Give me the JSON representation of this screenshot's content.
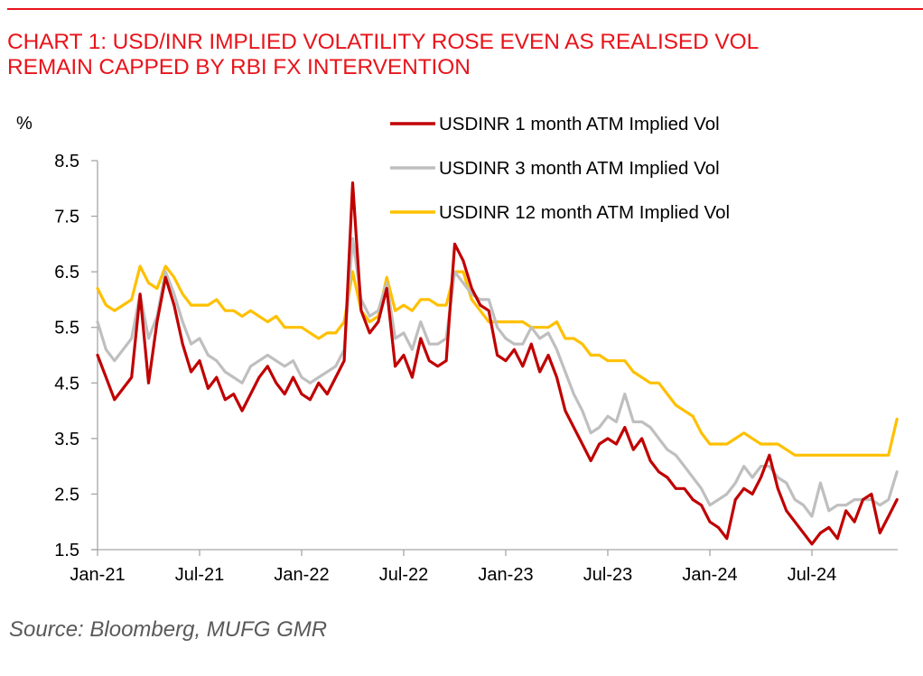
{
  "header": {
    "title_line1": "CHART 1: USD/INR IMPLIED VOLATILITY ROSE EVEN AS REALISED VOL",
    "title_line2": "REMAIN CAPPED BY RBI FX INTERVENTION"
  },
  "footer": {
    "source": "Source: Bloomberg, MUFG GMR"
  },
  "chart_data": {
    "type": "line",
    "title": "CHART 1: USD/INR IMPLIED VOLATILITY ROSE EVEN AS REALISED VOL REMAIN CAPPED BY RBI FX INTERVENTION",
    "ylabel": "%",
    "xlabel": "",
    "ylim": [
      1.5,
      8.5
    ],
    "yticks": [
      "8.5",
      "7.5",
      "6.5",
      "5.5",
      "4.5",
      "3.5",
      "2.5",
      "1.5"
    ],
    "ytick_values": [
      8.5,
      7.5,
      6.5,
      5.5,
      4.5,
      3.5,
      2.5,
      1.5
    ],
    "xlim_months_since_jan21": [
      0,
      47
    ],
    "xticks": [
      "Jan-21",
      "Jul-21",
      "Jan-22",
      "Jul-22",
      "Jan-23",
      "Jul-23",
      "Jan-24",
      "Jul-24"
    ],
    "xtick_months": [
      0,
      6,
      12,
      18,
      24,
      30,
      36,
      42
    ],
    "grid": false,
    "legend_position": "top-right",
    "x_unit": "months since Jan-21",
    "x": [
      0,
      0.5,
      1,
      1.5,
      2,
      2.5,
      3,
      3.5,
      4,
      4.5,
      5,
      5.5,
      6,
      6.5,
      7,
      7.5,
      8,
      8.5,
      9,
      9.5,
      10,
      10.5,
      11,
      11.5,
      12,
      12.5,
      13,
      13.5,
      14,
      14.5,
      15,
      15.5,
      16,
      16.5,
      17,
      17.5,
      18,
      18.5,
      19,
      19.5,
      20,
      20.5,
      21,
      21.5,
      22,
      22.5,
      23,
      23.5,
      24,
      24.5,
      25,
      25.5,
      26,
      26.5,
      27,
      27.5,
      28,
      28.5,
      29,
      29.5,
      30,
      30.5,
      31,
      31.5,
      32,
      32.5,
      33,
      33.5,
      34,
      34.5,
      35,
      35.5,
      36,
      36.5,
      37,
      37.5,
      38,
      38.5,
      39,
      39.5,
      40,
      40.5,
      41,
      41.5,
      42,
      42.5,
      43,
      43.5,
      44,
      44.5,
      45,
      45.5,
      46,
      46.5,
      47
    ],
    "series": [
      {
        "name": "USDINR 1 month ATM Implied Vol",
        "color": "#c00000",
        "values": [
          5.0,
          4.6,
          4.2,
          4.4,
          4.6,
          6.1,
          4.5,
          5.6,
          6.4,
          5.9,
          5.2,
          4.7,
          4.9,
          4.4,
          4.6,
          4.2,
          4.3,
          4.0,
          4.3,
          4.6,
          4.8,
          4.5,
          4.3,
          4.6,
          4.3,
          4.2,
          4.5,
          4.3,
          4.6,
          4.9,
          8.1,
          5.8,
          5.4,
          5.6,
          6.2,
          4.8,
          5.0,
          4.6,
          5.3,
          4.9,
          4.8,
          4.9,
          7.0,
          6.7,
          6.2,
          5.9,
          5.8,
          5.0,
          4.9,
          5.1,
          4.8,
          5.2,
          4.7,
          5.0,
          4.6,
          4.0,
          3.7,
          3.4,
          3.1,
          3.4,
          3.5,
          3.4,
          3.7,
          3.3,
          3.5,
          3.1,
          2.9,
          2.8,
          2.6,
          2.6,
          2.4,
          2.3,
          2.0,
          1.9,
          1.7,
          2.4,
          2.6,
          2.5,
          2.8,
          3.2,
          2.6,
          2.2,
          2.0,
          1.8,
          1.6,
          1.8,
          1.9,
          1.7,
          2.2,
          2.0,
          2.4,
          2.5,
          1.8,
          2.1,
          2.4
        ],
        "marks_named": "series-1m-line"
      },
      {
        "name": "USDINR 3 month ATM Implied Vol",
        "color": "#bfbfbf",
        "values": [
          5.6,
          5.1,
          4.9,
          5.1,
          5.3,
          6.1,
          5.3,
          5.7,
          6.5,
          6.1,
          5.6,
          5.2,
          5.3,
          5.0,
          4.9,
          4.7,
          4.6,
          4.5,
          4.8,
          4.9,
          5.0,
          4.9,
          4.8,
          4.9,
          4.6,
          4.5,
          4.6,
          4.7,
          4.8,
          5.1,
          7.1,
          6.0,
          5.7,
          5.8,
          6.3,
          5.3,
          5.4,
          5.1,
          5.6,
          5.2,
          5.2,
          5.3,
          6.5,
          6.3,
          6.1,
          6.0,
          6.0,
          5.5,
          5.3,
          5.2,
          5.2,
          5.5,
          5.3,
          5.4,
          5.1,
          4.7,
          4.3,
          4.0,
          3.6,
          3.7,
          3.9,
          3.8,
          4.3,
          3.8,
          3.8,
          3.7,
          3.5,
          3.3,
          3.2,
          3.0,
          2.8,
          2.6,
          2.3,
          2.4,
          2.5,
          2.7,
          3.0,
          2.8,
          3.0,
          3.0,
          2.8,
          2.7,
          2.4,
          2.3,
          2.1,
          2.7,
          2.2,
          2.3,
          2.3,
          2.4,
          2.4,
          2.4,
          2.3,
          2.4,
          2.9
        ],
        "marks_named": "series-3m-line"
      },
      {
        "name": "USDINR 12 month ATM Implied Vol",
        "color": "#ffc000",
        "values": [
          6.2,
          5.9,
          5.8,
          5.9,
          6.0,
          6.6,
          6.3,
          6.2,
          6.6,
          6.4,
          6.1,
          5.9,
          5.9,
          5.9,
          6.0,
          5.8,
          5.8,
          5.7,
          5.8,
          5.7,
          5.6,
          5.7,
          5.5,
          5.5,
          5.5,
          5.4,
          5.3,
          5.4,
          5.4,
          5.6,
          6.5,
          5.8,
          5.6,
          5.7,
          6.4,
          5.8,
          5.9,
          5.8,
          6.0,
          6.0,
          5.9,
          5.9,
          6.5,
          6.5,
          6.0,
          5.8,
          5.6,
          5.6,
          5.6,
          5.6,
          5.6,
          5.5,
          5.5,
          5.5,
          5.6,
          5.3,
          5.3,
          5.2,
          5.0,
          5.0,
          4.9,
          4.9,
          4.9,
          4.7,
          4.6,
          4.5,
          4.5,
          4.3,
          4.1,
          4.0,
          3.9,
          3.6,
          3.4,
          3.4,
          3.4,
          3.5,
          3.6,
          3.5,
          3.4,
          3.4,
          3.4,
          3.3,
          3.2,
          3.2,
          3.2,
          3.2,
          3.2,
          3.2,
          3.2,
          3.2,
          3.2,
          3.2,
          3.2,
          3.2,
          3.85
        ],
        "marks_named": "series-12m-line"
      }
    ]
  }
}
